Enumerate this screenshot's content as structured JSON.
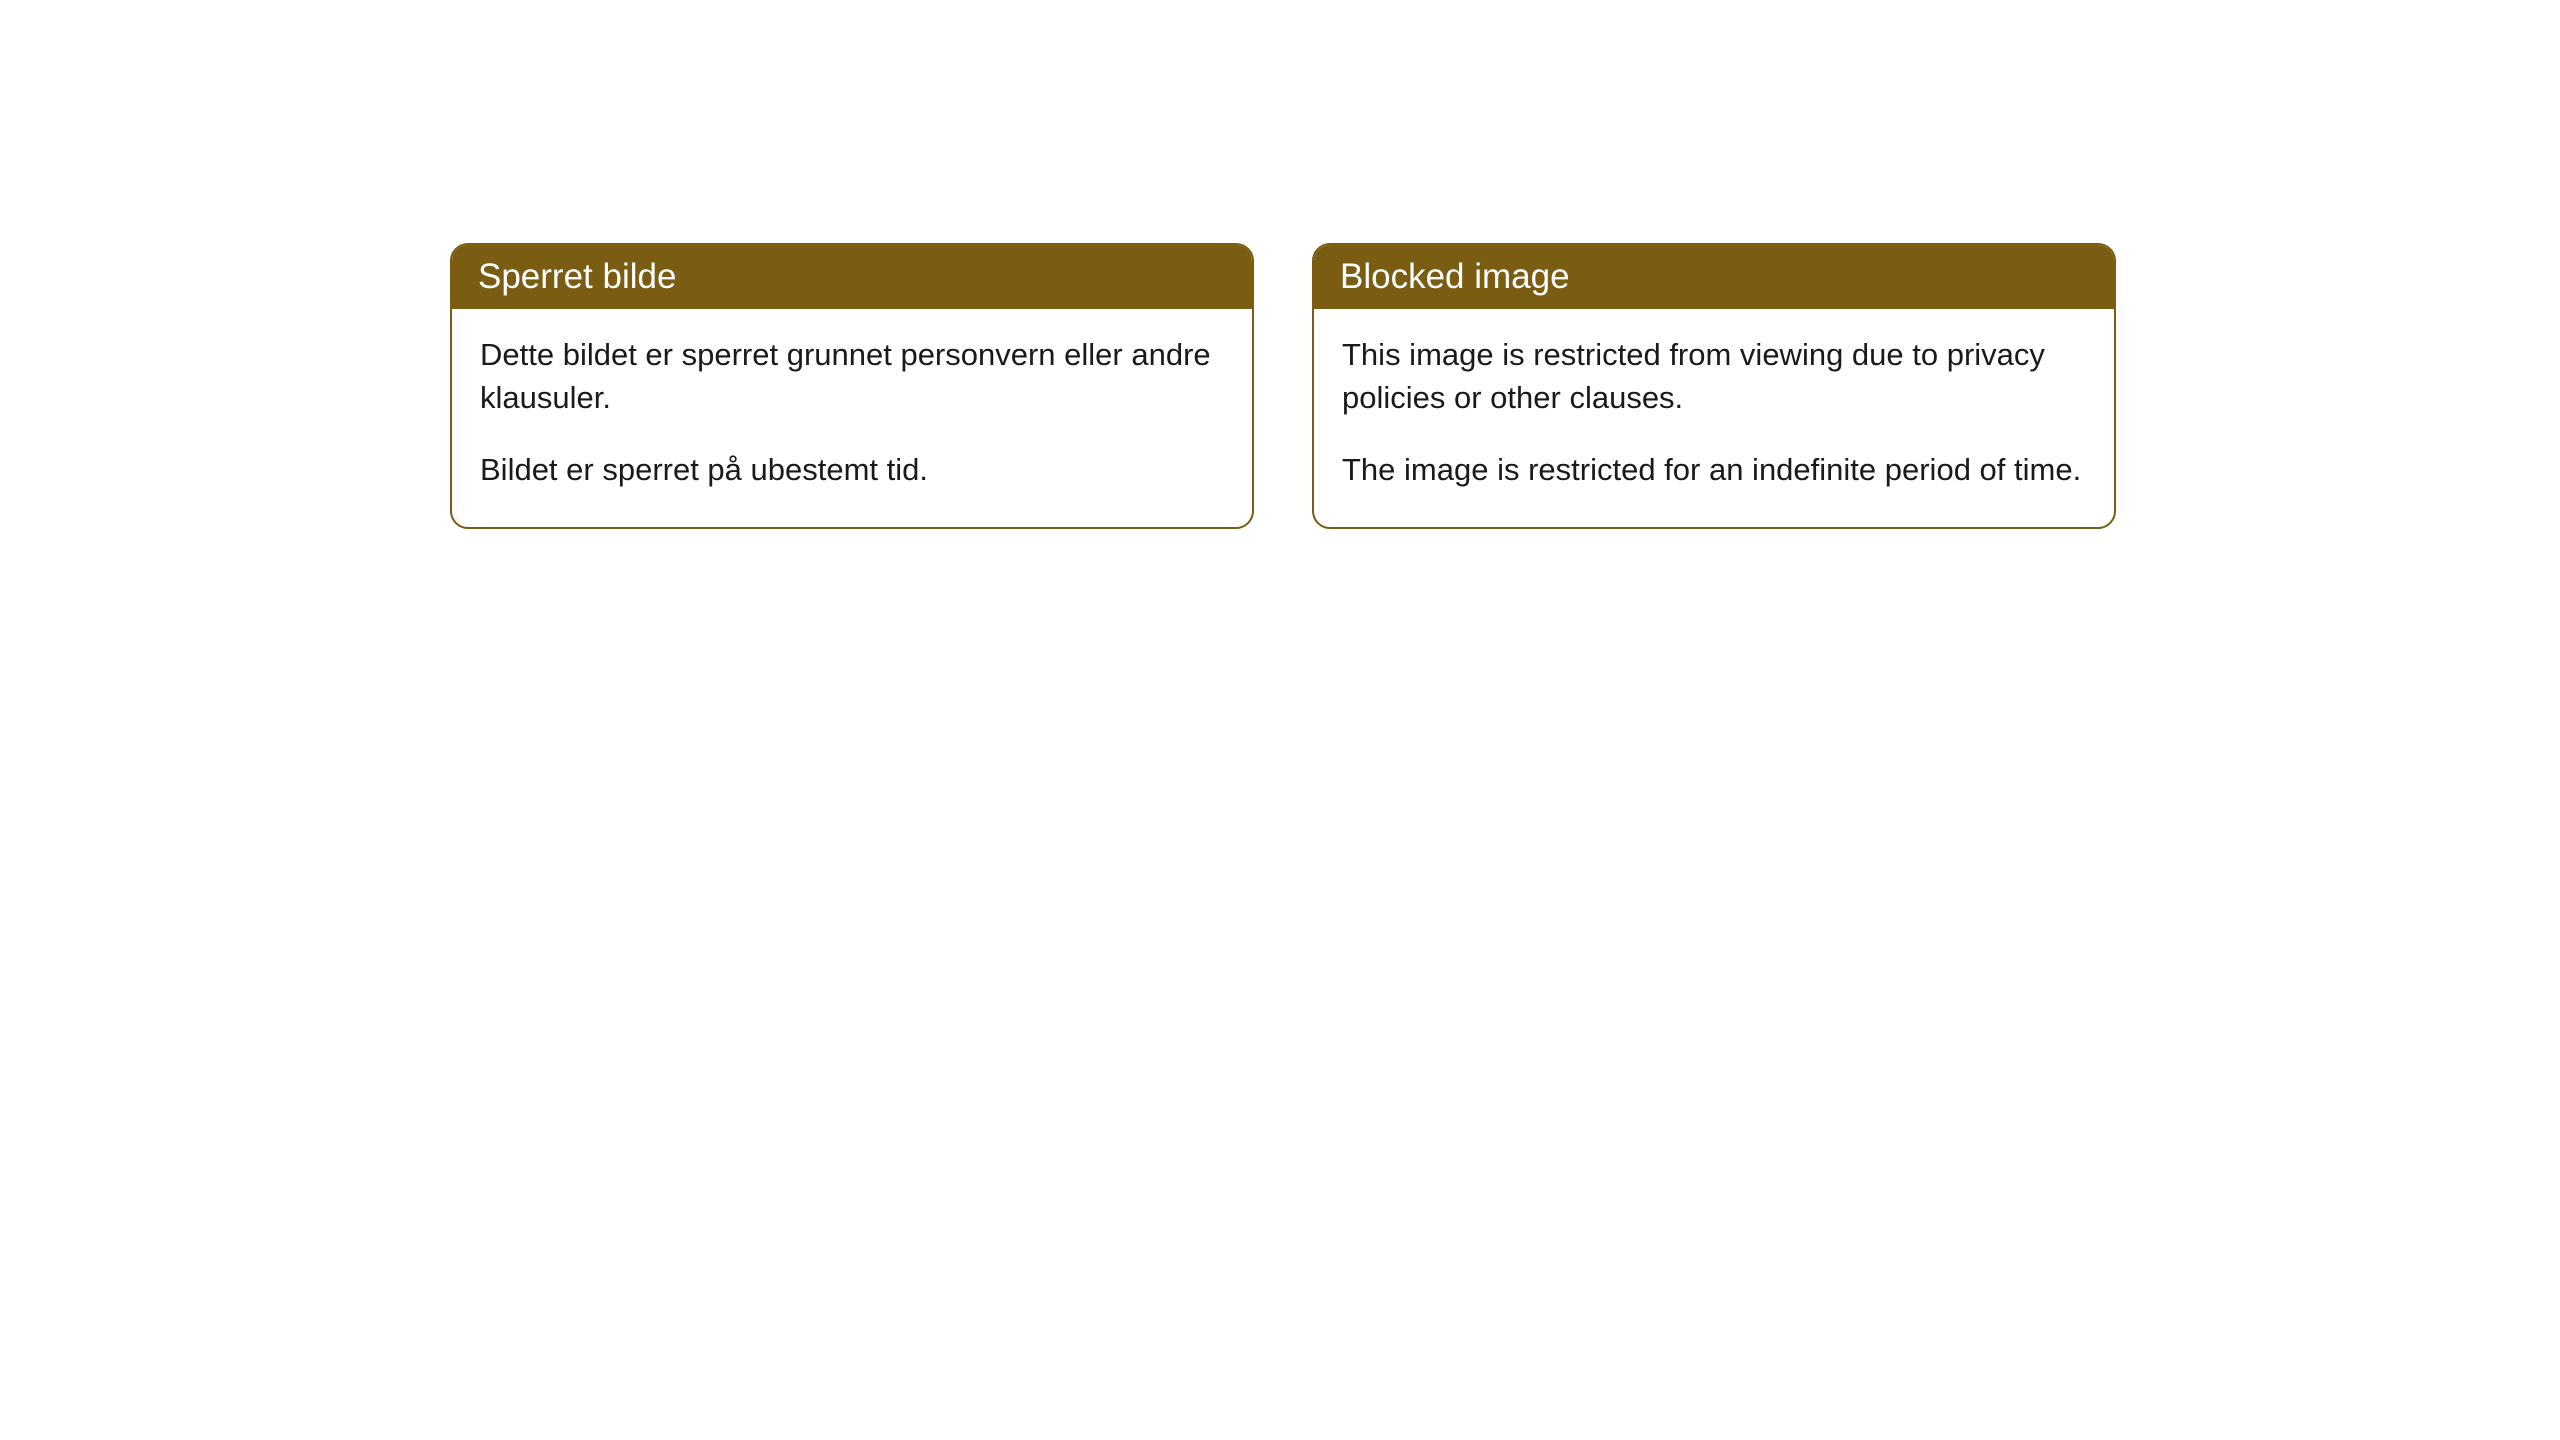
{
  "cards": [
    {
      "title": "Sperret bilde",
      "para1": "Dette bildet er sperret grunnet personvern eller andre klausuler.",
      "para2": "Bildet er sperret på ubestemt tid."
    },
    {
      "title": "Blocked image",
      "para1": "This image is restricted from viewing due to privacy policies or other clauses.",
      "para2": "The image is restricted for an indefinite period of time."
    }
  ],
  "style": {
    "header_bg": "#7a5c12",
    "header_text_color": "#ffffff",
    "border_color": "#7a5c12",
    "body_bg": "#ffffff",
    "body_text_color": "#1a1a1a",
    "border_radius": 18,
    "header_fontsize": 35,
    "body_fontsize": 31
  }
}
